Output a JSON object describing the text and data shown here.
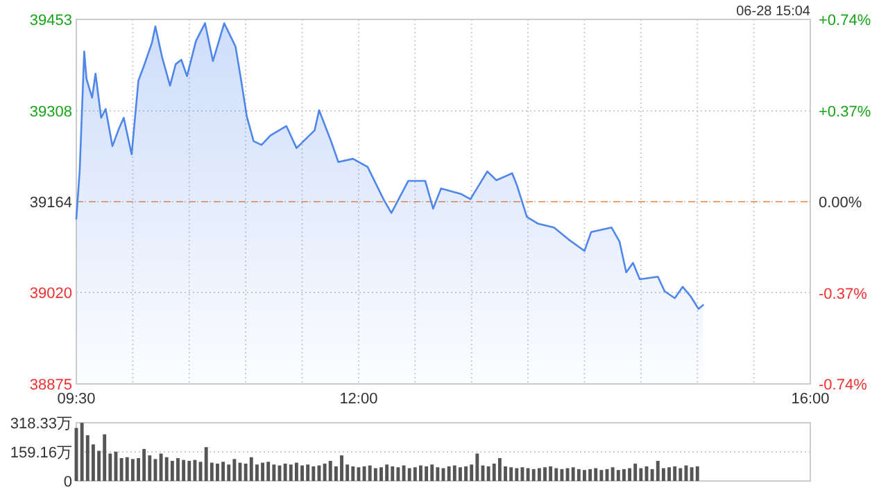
{
  "chart_data": [
    {
      "type": "area",
      "annotations": [
        "06-28 15:04"
      ],
      "x": [
        9.5,
        9.53,
        9.57,
        9.59,
        9.64,
        9.67,
        9.72,
        9.76,
        9.82,
        9.88,
        9.92,
        9.99,
        10.05,
        10.1,
        10.17,
        10.2,
        10.26,
        10.33,
        10.38,
        10.43,
        10.48,
        10.56,
        10.64,
        10.71,
        10.81,
        10.91,
        10.96,
        11.01,
        11.07,
        11.14,
        11.22,
        11.36,
        11.45,
        11.61,
        11.65,
        11.76,
        11.82,
        11.95,
        12.08,
        12.22,
        12.29,
        12.44,
        12.59,
        12.66,
        12.73,
        12.77,
        12.91,
        12.99,
        13.14,
        13.22,
        13.36,
        13.4,
        13.49,
        13.59,
        13.73,
        13.86,
        14,
        14.06,
        14.24,
        14.31,
        14.37,
        14.43,
        14.49,
        14.65,
        14.71,
        14.8,
        14.87,
        14.94,
        15.01,
        15.05
      ],
      "values": [
        39137,
        39213,
        39402,
        39359,
        39329,
        39367,
        39297,
        39311,
        39252,
        39281,
        39297,
        39239,
        39356,
        39380,
        39416,
        39442,
        39393,
        39348,
        39382,
        39389,
        39363,
        39419,
        39447,
        39387,
        39447,
        39410,
        39356,
        39299,
        39260,
        39254,
        39269,
        39284,
        39249,
        39277,
        39309,
        39258,
        39227,
        39232,
        39219,
        39168,
        39146,
        39197,
        39197,
        39153,
        39185,
        39183,
        39176,
        39168,
        39212,
        39198,
        39209,
        39191,
        39140,
        39129,
        39123,
        39104,
        39086,
        39116,
        39123,
        39101,
        39052,
        39067,
        39041,
        39045,
        39022,
        39011,
        39029,
        39014,
        38994,
        39000
      ],
      "color": "#4f86ec",
      "xlim": [
        9.5,
        16
      ],
      "xticks": [
        {
          "value": 9.5,
          "label": "09:30"
        },
        {
          "value": 10,
          "label": null
        },
        {
          "value": 10.5,
          "label": null
        },
        {
          "value": 11,
          "label": null
        },
        {
          "value": 11.5,
          "label": null
        },
        {
          "value": 12,
          "label": "12:00"
        },
        {
          "value": 12.5,
          "label": null
        },
        {
          "value": 13,
          "label": null
        },
        {
          "value": 13.5,
          "label": null
        },
        {
          "value": 14,
          "label": null
        },
        {
          "value": 14.5,
          "label": null
        },
        {
          "value": 15,
          "label": null
        },
        {
          "value": 15.5,
          "label": null
        },
        {
          "value": 16,
          "label": "16:00"
        }
      ],
      "ylim": [
        38875,
        39453
      ],
      "yticks": [
        38875,
        39020,
        39164,
        39308,
        39453
      ],
      "y2lim": [
        -0.74,
        0.74
      ],
      "y2ticks": [
        {
          "value": -0.74,
          "label": "-0.74%"
        },
        {
          "value": -0.37,
          "label": "-0.37%"
        },
        {
          "value": 0,
          "label": "0.00%"
        },
        {
          "value": 0.37,
          "label": "+0.37%"
        },
        {
          "value": 0.74,
          "label": "+0.74%"
        }
      ],
      "ref_lines": [
        {
          "axis": "y",
          "value": 39164,
          "color": "#f0a070",
          "line_style": "dashed"
        }
      ],
      "grid": true
    },
    {
      "type": "bar",
      "x": [
        9.5,
        9.55,
        9.6,
        9.65,
        9.7,
        9.75,
        9.8,
        9.85,
        9.9,
        9.95,
        10,
        10.05,
        10.1,
        10.15,
        10.2,
        10.25,
        10.3,
        10.35,
        10.4,
        10.45,
        10.5,
        10.55,
        10.6,
        10.65,
        10.7,
        10.75,
        10.8,
        10.85,
        10.9,
        10.95,
        11,
        11.05,
        11.1,
        11.15,
        11.2,
        11.25,
        11.3,
        11.35,
        11.4,
        11.45,
        11.5,
        11.55,
        11.6,
        11.65,
        11.7,
        11.75,
        11.8,
        11.85,
        11.9,
        11.95,
        12,
        12.05,
        12.1,
        12.15,
        12.2,
        12.25,
        12.3,
        12.35,
        12.4,
        12.45,
        12.5,
        12.55,
        12.6,
        12.65,
        12.7,
        12.75,
        12.8,
        12.85,
        12.9,
        12.95,
        13,
        13.05,
        13.1,
        13.15,
        13.2,
        13.25,
        13.3,
        13.35,
        13.4,
        13.45,
        13.5,
        13.55,
        13.6,
        13.65,
        13.7,
        13.75,
        13.8,
        13.85,
        13.9,
        13.95,
        14,
        14.05,
        14.1,
        14.15,
        14.2,
        14.25,
        14.3,
        14.35,
        14.4,
        14.45,
        14.5,
        14.55,
        14.6,
        14.65,
        14.7,
        14.75,
        14.8,
        14.85,
        14.9,
        14.95,
        15
      ],
      "values": [
        290,
        318,
        250,
        200,
        165,
        255,
        150,
        160,
        125,
        130,
        120,
        125,
        175,
        140,
        120,
        150,
        130,
        110,
        125,
        115,
        110,
        115,
        105,
        185,
        100,
        95,
        105,
        90,
        120,
        100,
        95,
        130,
        90,
        100,
        105,
        90,
        85,
        95,
        90,
        100,
        85,
        90,
        80,
        85,
        95,
        110,
        80,
        140,
        90,
        80,
        75,
        80,
        85,
        70,
        75,
        90,
        80,
        75,
        85,
        70,
        75,
        85,
        80,
        90,
        75,
        70,
        80,
        85,
        75,
        80,
        90,
        150,
        85,
        80,
        95,
        125,
        80,
        75,
        70,
        75,
        70,
        65,
        70,
        75,
        80,
        70,
        65,
        70,
        75,
        65,
        60,
        65,
        70,
        60,
        65,
        75,
        60,
        65,
        70,
        95,
        70,
        80,
        65,
        110,
        70,
        75,
        80,
        70,
        85,
        75,
        80
      ],
      "color": "#555555",
      "xlim": [
        9.5,
        16
      ],
      "ylim": [
        0,
        318.33
      ],
      "yticks": [
        0,
        {
          "value": 159.16,
          "label": "159.16万"
        },
        {
          "value": 318.33,
          "label": "318.33万"
        }
      ],
      "grid": "y",
      "tick_labels": "y"
    }
  ]
}
